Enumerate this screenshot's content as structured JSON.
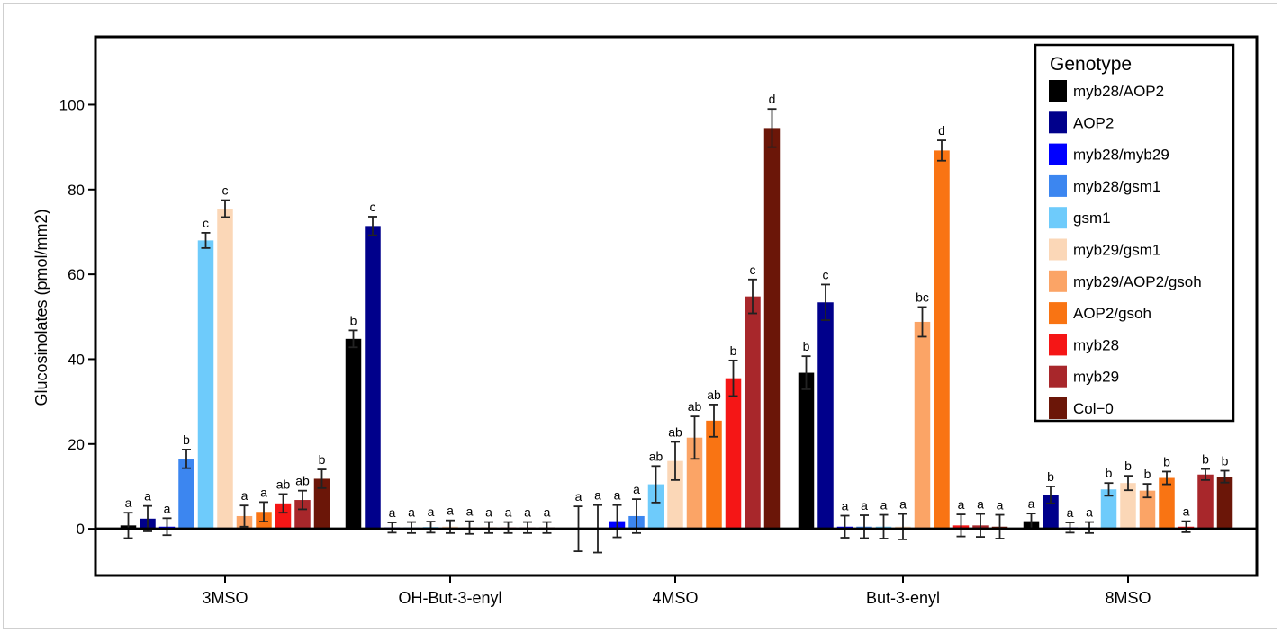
{
  "chart_data": {
    "type": "bar",
    "ylabel": "Glucosinolates (pmol/mm2)",
    "xlabel": "",
    "ylim": [
      -11,
      116
    ],
    "yticks": [
      0,
      20,
      40,
      60,
      80,
      100
    ],
    "grid": false,
    "legend": {
      "title": "Genotype",
      "placement": "top-right"
    },
    "categories": [
      "3MSO",
      "OH-But-3-enyl",
      "4MSO",
      "But-3-enyl",
      "8MSO"
    ],
    "series": [
      {
        "name": "myb28/AOP2",
        "color": "#000000",
        "values": [
          0.8,
          44.8,
          0,
          36.8,
          1.8
        ],
        "errors": [
          3.0,
          2.0,
          5.3,
          3.9,
          1.8
        ],
        "labels": [
          "a",
          "b",
          "a",
          "b",
          "a"
        ]
      },
      {
        "name": "AOP2",
        "color": "#00008B",
        "values": [
          2.4,
          71.4,
          0,
          53.4,
          8.0
        ],
        "errors": [
          3.0,
          2.2,
          5.6,
          4.2,
          2.0
        ],
        "labels": [
          "a",
          "c",
          "a",
          "c",
          "b"
        ]
      },
      {
        "name": "myb28/myb29",
        "color": "#0000FF",
        "values": [
          0.5,
          0.3,
          1.8,
          0.5,
          0.3
        ],
        "errors": [
          2.0,
          1.2,
          3.8,
          2.6,
          1.2
        ],
        "labels": [
          "a",
          "a",
          "a",
          "a",
          "a"
        ]
      },
      {
        "name": "myb28/gsm1",
        "color": "#3C86F0",
        "values": [
          16.5,
          0.3,
          3.0,
          0.5,
          0.3
        ],
        "errors": [
          2.2,
          1.3,
          4.0,
          2.7,
          1.3
        ],
        "labels": [
          "b",
          "a",
          "a",
          "a",
          "a"
        ]
      },
      {
        "name": "gsm1",
        "color": "#6ECBFB",
        "values": [
          68.0,
          0.4,
          10.5,
          0.5,
          9.3
        ],
        "errors": [
          1.8,
          1.3,
          4.3,
          2.8,
          1.5
        ],
        "labels": [
          "c",
          "a",
          "ab",
          "a",
          "b"
        ]
      },
      {
        "name": "myb29/gsm1",
        "color": "#FBD7B7",
        "values": [
          75.5,
          0.5,
          16.0,
          0.5,
          10.8
        ],
        "errors": [
          2.0,
          1.5,
          4.5,
          3.0,
          1.7
        ],
        "labels": [
          "c",
          "a",
          "ab",
          "a",
          "b"
        ]
      },
      {
        "name": "myb29/AOP2/gsoh",
        "color": "#FBA466",
        "values": [
          3.0,
          0.3,
          21.5,
          48.8,
          9.0
        ],
        "errors": [
          2.5,
          1.5,
          5.0,
          3.5,
          1.6
        ],
        "labels": [
          "a",
          "a",
          "ab",
          "bc",
          "b"
        ]
      },
      {
        "name": "AOP2/gsoh",
        "color": "#F97413",
        "values": [
          4.0,
          0.3,
          25.5,
          89.2,
          12.0
        ],
        "errors": [
          2.3,
          1.3,
          3.8,
          2.4,
          1.5
        ],
        "labels": [
          "a",
          "a",
          "ab",
          "d",
          "b"
        ]
      },
      {
        "name": "myb28",
        "color": "#F51616",
        "values": [
          6.0,
          0.3,
          35.5,
          0.8,
          0.5
        ],
        "errors": [
          2.2,
          1.3,
          4.2,
          2.6,
          1.3
        ],
        "labels": [
          "ab",
          "a",
          "b",
          "a",
          "a"
        ]
      },
      {
        "name": "myb29",
        "color": "#A8272B",
        "values": [
          6.8,
          0.3,
          54.8,
          0.8,
          12.8
        ],
        "errors": [
          2.2,
          1.3,
          4.0,
          2.7,
          1.3
        ],
        "labels": [
          "ab",
          "a",
          "c",
          "a",
          "b"
        ]
      },
      {
        "name": "Col−0",
        "color": "#6B1608",
        "values": [
          11.8,
          0.3,
          94.5,
          0.5,
          12.3
        ],
        "errors": [
          2.2,
          1.3,
          4.5,
          2.8,
          1.4
        ],
        "labels": [
          "b",
          "a",
          "d",
          "a",
          "b"
        ]
      }
    ]
  }
}
